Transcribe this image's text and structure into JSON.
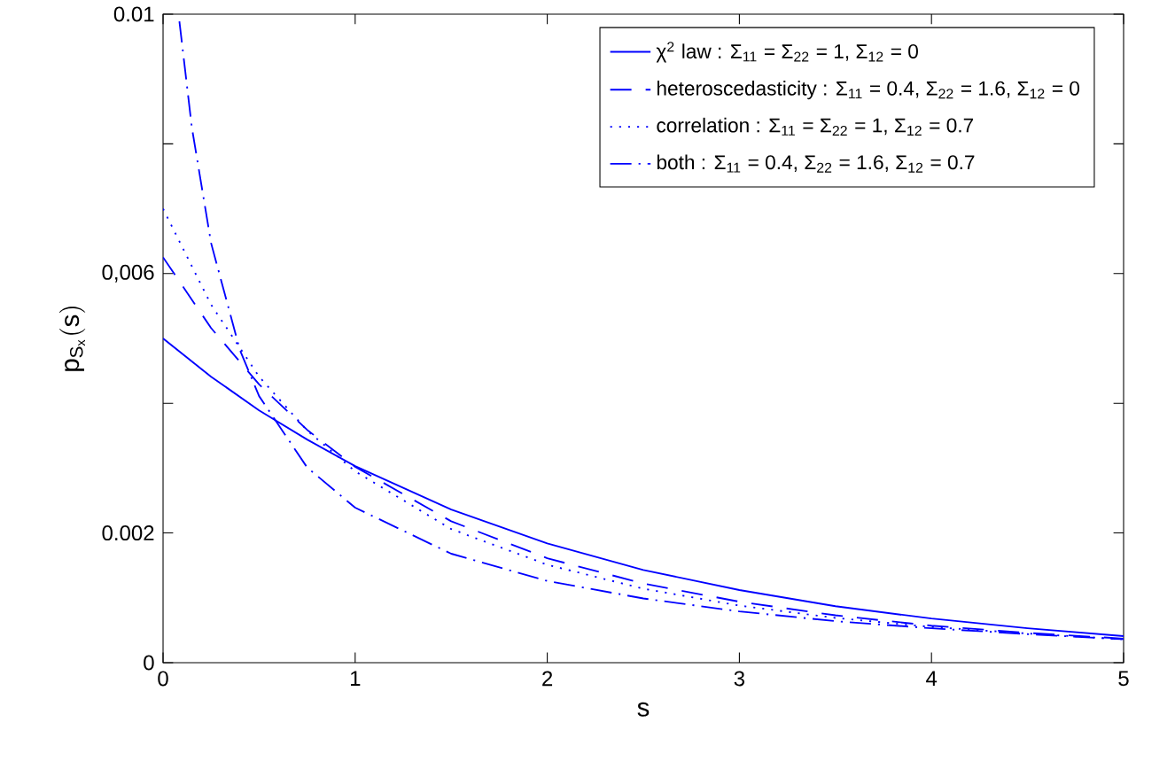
{
  "chart_data": {
    "type": "line",
    "xlabel": "s",
    "ylabel": "\\mathrm{p}_{\\mathrm{S}_{\\mathrm{x}}}(\\mathrm{s})",
    "xlim": [
      0,
      5
    ],
    "ylim": [
      0,
      0.01
    ],
    "xticks": [
      0,
      1,
      2,
      3,
      4,
      5
    ],
    "yticks": [
      0,
      0.002,
      {
        "value": 0.004,
        "label": null
      },
      {
        "value": 0.006,
        "label": "0,006"
      },
      {
        "value": 0.008,
        "label": null
      },
      0.01
    ],
    "legend": "top right",
    "grid": false,
    "marker": "none",
    "series": [
      {
        "name": "χ$^{2}$ law : Σ$_{11}$ = Σ$_{22}$ = 1, Σ$_{12}$ = 0",
        "color": "#0000ff",
        "line_style": "solid",
        "x": [
          0,
          0.25,
          0.5,
          0.75,
          1,
          1.5,
          2,
          2.5,
          3,
          3.5,
          4,
          4.5,
          5
        ],
        "values": [
          0.005,
          0.00441,
          0.00389,
          0.00344,
          0.00303,
          0.00236,
          0.00184,
          0.00143,
          0.00112,
          0.00087,
          0.00068,
          0.00053,
          0.00041
        ]
      },
      {
        "name": "heteroscedasticity : Σ$_{11}$ = 0.4, Σ$_{22}$ = 1.6, Σ$_{12}$ = 0",
        "color": "#0000ff",
        "line_style": "dashed",
        "x": [
          0,
          0.25,
          0.5,
          0.75,
          1,
          1.5,
          2,
          2.5,
          3,
          3.5,
          4,
          4.5,
          5
        ],
        "values": [
          0.00625,
          0.00516,
          0.00429,
          0.00359,
          0.00302,
          0.00218,
          0.00161,
          0.00122,
          0.00094,
          0.00073,
          0.00057,
          0.00046,
          0.00037
        ]
      },
      {
        "name": "correlation : Σ$_{11}$ = Σ$_{22}$ = 1, Σ$_{12}$ = 0.7",
        "color": "#0000ff",
        "line_style": "dotted",
        "x": [
          0,
          0.25,
          0.5,
          0.75,
          1,
          1.5,
          2,
          2.5,
          3,
          3.5,
          4,
          4.5,
          5
        ],
        "values": [
          0.007,
          0.00552,
          0.00441,
          0.00358,
          0.00295,
          0.00206,
          0.00151,
          0.00114,
          0.00088,
          0.00069,
          0.00055,
          0.00045,
          0.00036
        ]
      },
      {
        "name": "both : Σ$_{11}$ = 0.4, Σ$_{22}$ = 1.6, Σ$_{12}$ = 0.7",
        "color": "#0000ff",
        "line_style": "dashdot",
        "x": [
          0.085,
          0.15,
          0.25,
          0.4,
          0.5,
          0.75,
          1,
          1.5,
          2,
          2.5,
          3,
          3.5,
          4,
          4.5,
          5
        ],
        "values": [
          0.00989,
          0.00825,
          0.00647,
          0.00482,
          0.00411,
          0.00301,
          0.00239,
          0.00168,
          0.00126,
          0.00099,
          0.00079,
          0.00064,
          0.00053,
          0.00044,
          0.00036
        ]
      }
    ]
  }
}
